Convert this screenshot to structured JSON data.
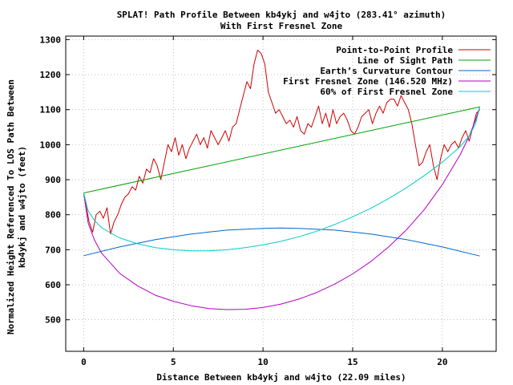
{
  "chart_data": {
    "type": "line",
    "title": "SPLAT! Path Profile Between kb4ykj and w4jto (283.41° azimuth)",
    "subtitle": "With First Fresnel Zone",
    "xlabel": "Distance Between kb4ykj and w4jto (22.09 miles)",
    "ylabel_line1": "Normalized Height Referenced To LOS Path Between",
    "ylabel_line2": "kb4ykj and w4jto (feet)",
    "xlim": [
      -1,
      23
    ],
    "ylim": [
      410,
      1310
    ],
    "xticks": [
      0,
      5,
      10,
      15,
      20
    ],
    "yticks": [
      500,
      600,
      700,
      800,
      900,
      1000,
      1100,
      1200,
      1300
    ],
    "grid": true,
    "legend_position": "top-right",
    "series": [
      {
        "name": "Point-to-Point Profile",
        "color": "#cc0000",
        "x": [
          0,
          0.3,
          0.5,
          0.7,
          0.9,
          1.1,
          1.3,
          1.5,
          1.7,
          1.9,
          2.1,
          2.3,
          2.5,
          2.7,
          2.9,
          3.1,
          3.3,
          3.5,
          3.7,
          3.9,
          4.1,
          4.3,
          4.5,
          4.7,
          4.9,
          5.1,
          5.3,
          5.5,
          5.7,
          5.9,
          6.1,
          6.3,
          6.5,
          6.7,
          6.9,
          7.1,
          7.3,
          7.5,
          7.7,
          7.9,
          8.1,
          8.3,
          8.5,
          8.7,
          8.9,
          9.1,
          9.3,
          9.5,
          9.7,
          9.9,
          10.1,
          10.3,
          10.5,
          10.7,
          10.9,
          11.1,
          11.3,
          11.5,
          11.7,
          11.9,
          12.1,
          12.3,
          12.5,
          12.7,
          12.9,
          13.1,
          13.3,
          13.5,
          13.7,
          13.9,
          14.1,
          14.3,
          14.5,
          14.7,
          14.9,
          15.1,
          15.3,
          15.5,
          15.7,
          15.9,
          16.1,
          16.3,
          16.5,
          16.7,
          16.9,
          17.1,
          17.3,
          17.5,
          17.7,
          17.9,
          18.1,
          18.3,
          18.5,
          18.7,
          18.9,
          19.1,
          19.3,
          19.5,
          19.7,
          19.9,
          20.1,
          20.3,
          20.5,
          20.7,
          20.9,
          21.1,
          21.3,
          21.5,
          21.7,
          21.9,
          22.09
        ],
        "y": [
          860,
          780,
          750,
          800,
          810,
          790,
          820,
          745,
          780,
          800,
          830,
          850,
          860,
          880,
          870,
          910,
          890,
          930,
          920,
          960,
          940,
          900,
          950,
          1000,
          980,
          1020,
          970,
          1000,
          960,
          990,
          1010,
          1030,
          1000,
          1020,
          990,
          1040,
          1020,
          1000,
          1020,
          1040,
          1010,
          1050,
          1060,
          1100,
          1140,
          1180,
          1160,
          1230,
          1270,
          1260,
          1230,
          1150,
          1120,
          1090,
          1100,
          1080,
          1060,
          1070,
          1050,
          1080,
          1040,
          1030,
          1060,
          1050,
          1080,
          1110,
          1060,
          1090,
          1050,
          1100,
          1060,
          1080,
          1090,
          1070,
          1040,
          1030,
          1050,
          1080,
          1090,
          1100,
          1060,
          1090,
          1110,
          1090,
          1120,
          1130,
          1130,
          1110,
          1140,
          1120,
          1100,
          1060,
          1000,
          940,
          950,
          980,
          1000,
          940,
          900,
          960,
          1000,
          980,
          1000,
          1010,
          990,
          1020,
          1040,
          1010,
          1050,
          1090,
          1100
        ]
      },
      {
        "name": "Line of Sight Path",
        "color": "#00a000",
        "x": [
          0,
          22.09
        ],
        "y": [
          862,
          1108
        ]
      },
      {
        "name": "Earth’s Curvature Contour",
        "color": "#0066cc",
        "x": [
          0,
          2,
          4,
          6,
          8,
          10,
          11,
          12,
          14,
          16,
          18,
          20,
          22.09
        ],
        "y": [
          683,
          708,
          729,
          745,
          756,
          761,
          762,
          761,
          756,
          745,
          729,
          708,
          682
        ]
      },
      {
        "name": "First Fresnel Zone (146.520 MHz)",
        "color": "#b000c0",
        "x": [
          0,
          0.25,
          0.6,
          1,
          2,
          3,
          4,
          5,
          6,
          7,
          8,
          9,
          10,
          11,
          12,
          13,
          14,
          15,
          16,
          17,
          18,
          19,
          20,
          21,
          21.5,
          21.85,
          22.09
        ],
        "y": [
          862,
          776,
          728,
          690,
          633,
          597,
          570,
          553,
          540,
          532,
          529,
          530,
          535,
          545,
          559,
          578,
          602,
          631,
          666,
          708,
          757,
          815,
          886,
          972,
          1025,
          1070,
          1108
        ]
      },
      {
        "name": "60% of First Fresnel Zone",
        "color": "#00cccc",
        "x": [
          0,
          0.25,
          0.6,
          1,
          2,
          3,
          4,
          5,
          6,
          7,
          8,
          9,
          10,
          11,
          12,
          13,
          14,
          15,
          16,
          17,
          18,
          19,
          20,
          21,
          21.5,
          21.85,
          22.09
        ],
        "y": [
          862,
          811,
          784,
          763,
          734,
          717,
          706,
          700,
          697,
          697,
          700,
          706,
          714,
          724,
          737,
          753,
          772,
          794,
          818,
          846,
          877,
          912,
          950,
          995,
          1025,
          1060,
          1108
        ]
      }
    ]
  }
}
